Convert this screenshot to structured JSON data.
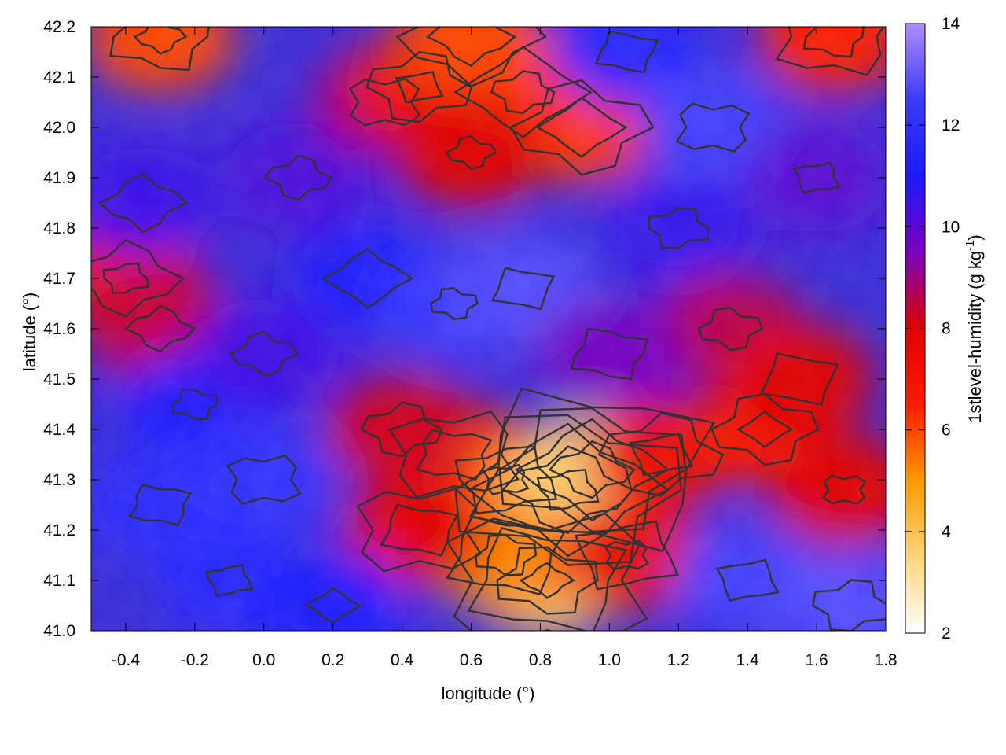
{
  "chart_data": {
    "type": "heatmap",
    "xlabel": "longitude (°)",
    "ylabel": "latitude (°)",
    "colorbar_label": "1stlevel-humidity (g kg",
    "colorbar_label_sup": "-1",
    "colorbar_label_end": ")",
    "xlim": [
      -0.5,
      1.8
    ],
    "ylim": [
      41.0,
      42.2
    ],
    "x_ticks": [
      "-0.4",
      "-0.2",
      "0.0",
      "0.2",
      "0.4",
      "0.6",
      "0.8",
      "1.0",
      "1.2",
      "1.4",
      "1.6",
      "1.8"
    ],
    "x_tick_values": [
      -0.4,
      -0.2,
      0.0,
      0.2,
      0.4,
      0.6,
      0.8,
      1.0,
      1.2,
      1.4,
      1.6,
      1.8
    ],
    "y_ticks": [
      "41.0",
      "41.1",
      "41.2",
      "41.3",
      "41.4",
      "41.5",
      "41.6",
      "41.7",
      "41.8",
      "41.9",
      "42.0",
      "42.1",
      "42.2"
    ],
    "y_tick_values": [
      41.0,
      41.1,
      41.2,
      41.3,
      41.4,
      41.5,
      41.6,
      41.7,
      41.8,
      41.9,
      42.0,
      42.1,
      42.2
    ],
    "colorbar_ticks": [
      "2",
      "4",
      "6",
      "8",
      "10",
      "12",
      "14"
    ],
    "colorbar_tick_values": [
      2,
      4,
      6,
      8,
      10,
      12,
      14
    ],
    "colorbar_range": [
      2,
      14
    ],
    "colormap": [
      "#ffffff",
      "#ffd57a",
      "#ff9a00",
      "#ff1a00",
      "#e00000",
      "#7a00c0",
      "#1a1aff",
      "#3b3bff",
      "#b08cff"
    ],
    "contour_color": "#333333",
    "humidity_fields": [
      {
        "lon": -0.4,
        "lat": 41.7,
        "value": 7.6
      },
      {
        "lon": -0.3,
        "lat": 41.6,
        "value": 8.4
      },
      {
        "lon": -0.35,
        "lat": 41.85,
        "value": 10.5
      },
      {
        "lon": -0.2,
        "lat": 41.45,
        "value": 11.2
      },
      {
        "lon": -0.3,
        "lat": 41.25,
        "value": 11.8
      },
      {
        "lon": 0.0,
        "lat": 41.3,
        "value": 12.0
      },
      {
        "lon": -0.1,
        "lat": 41.1,
        "value": 11.6
      },
      {
        "lon": 0.1,
        "lat": 41.9,
        "value": 10.2
      },
      {
        "lon": 0.3,
        "lat": 41.7,
        "value": 11.0
      },
      {
        "lon": 0.55,
        "lat": 41.65,
        "value": 12.4
      },
      {
        "lon": 0.75,
        "lat": 41.68,
        "value": 12.8
      },
      {
        "lon": 0.35,
        "lat": 42.05,
        "value": 9.0
      },
      {
        "lon": 0.45,
        "lat": 42.08,
        "value": 7.4
      },
      {
        "lon": 0.75,
        "lat": 42.07,
        "value": 6.5
      },
      {
        "lon": 0.92,
        "lat": 42.0,
        "value": 6.2
      },
      {
        "lon": 0.6,
        "lat": 41.95,
        "value": 8.0
      },
      {
        "lon": 1.05,
        "lat": 42.15,
        "value": 11.5
      },
      {
        "lon": 1.3,
        "lat": 42.0,
        "value": 12.6
      },
      {
        "lon": 1.6,
        "lat": 41.9,
        "value": 10.0
      },
      {
        "lon": 1.2,
        "lat": 41.8,
        "value": 10.6
      },
      {
        "lon": 0.6,
        "lat": 42.18,
        "value": 6.0
      },
      {
        "lon": -0.3,
        "lat": 42.18,
        "value": 6.0
      },
      {
        "lon": 1.65,
        "lat": 42.18,
        "value": 6.5
      },
      {
        "lon": 0.55,
        "lat": 41.35,
        "value": 7.2
      },
      {
        "lon": 0.7,
        "lat": 41.3,
        "value": 6.0
      },
      {
        "lon": 0.88,
        "lat": 41.28,
        "value": 4.0
      },
      {
        "lon": 0.95,
        "lat": 41.32,
        "value": 3.6
      },
      {
        "lon": 0.82,
        "lat": 41.1,
        "value": 3.8
      },
      {
        "lon": 0.7,
        "lat": 41.15,
        "value": 5.2
      },
      {
        "lon": 0.45,
        "lat": 41.2,
        "value": 7.8
      },
      {
        "lon": 1.05,
        "lat": 41.15,
        "value": 7.5
      },
      {
        "lon": 1.15,
        "lat": 41.35,
        "value": 7.4
      },
      {
        "lon": 0.4,
        "lat": 41.4,
        "value": 8.2
      },
      {
        "lon": 1.45,
        "lat": 41.4,
        "value": 6.8
      },
      {
        "lon": 1.35,
        "lat": 41.6,
        "value": 8.6
      },
      {
        "lon": 1.55,
        "lat": 41.5,
        "value": 8.0
      },
      {
        "lon": 1.68,
        "lat": 41.28,
        "value": 8.0
      },
      {
        "lon": 1.4,
        "lat": 41.1,
        "value": 12.6
      },
      {
        "lon": 1.7,
        "lat": 41.05,
        "value": 12.8
      },
      {
        "lon": 0.2,
        "lat": 41.05,
        "value": 11.0
      },
      {
        "lon": 0.0,
        "lat": 41.55,
        "value": 10.4
      },
      {
        "lon": 1.0,
        "lat": 41.55,
        "value": 9.6
      }
    ]
  }
}
